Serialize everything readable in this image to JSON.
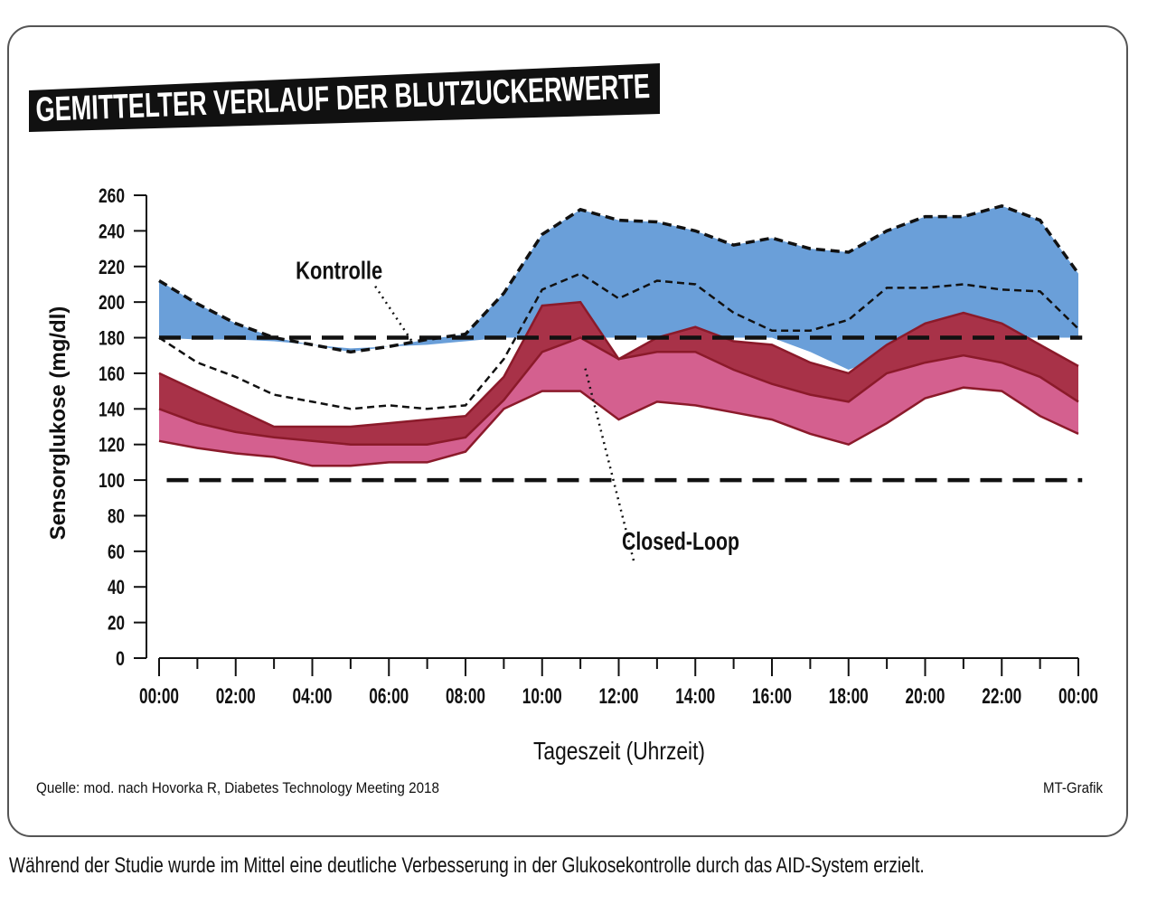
{
  "title": "GEMITTELTER VERLAUF DER BLUTZUCKERWERTE",
  "source": "Quelle: mod. nach Hovorka R, Diabetes Technology Meeting 2018",
  "credit": "MT-Grafik",
  "caption": "Während der Studie wurde im Mittel eine deutliche Verbesserung in der Glukosekontrolle durch das AID-System erzielt.",
  "colors": {
    "kontrolle_fill": "#6a9fd9",
    "closed_loop_outer": "#d4608f",
    "closed_loop_inner": "#a83248",
    "line": "#8b1a2a",
    "dashed": "#111111"
  },
  "chart_data": {
    "type": "area",
    "title": "GEMITTELTER VERLAUF DER BLUTZUCKERWERTE",
    "xlabel": "Tageszeit (Uhrzeit)",
    "ylabel": "Sensorglukose (mg/dl)",
    "ylim": [
      0,
      260
    ],
    "xlim": [
      0,
      24
    ],
    "y_ticks": [
      "0",
      "20",
      "40",
      "60",
      "80",
      "100",
      "120",
      "140",
      "160",
      "180",
      "200",
      "220",
      "240",
      "260"
    ],
    "x_ticks": [
      "00:00",
      "02:00",
      "04:00",
      "06:00",
      "08:00",
      "10:00",
      "12:00",
      "14:00",
      "16:00",
      "18:00",
      "20:00",
      "22:00",
      "00:00"
    ],
    "x_ticks_hours": [
      0,
      2,
      4,
      6,
      8,
      10,
      12,
      14,
      16,
      18,
      20,
      22,
      24
    ],
    "reference_lines": [
      180,
      100
    ],
    "hours": [
      0,
      1,
      2,
      3,
      4,
      5,
      6,
      7,
      8,
      9,
      10,
      11,
      12,
      13,
      14,
      15,
      16,
      17,
      18,
      19,
      20,
      21,
      22,
      23,
      24
    ],
    "series": [
      {
        "name": "Kontrolle",
        "role": "upper_quartile",
        "values": [
          212,
          199,
          188,
          180,
          176,
          172,
          175,
          179,
          182,
          205,
          238,
          252,
          246,
          245,
          240,
          232,
          236,
          230,
          228,
          240,
          248,
          248,
          254,
          246,
          216
        ]
      },
      {
        "name": "Kontrolle",
        "role": "median",
        "values": [
          180,
          166,
          158,
          148,
          144,
          140,
          142,
          140,
          142,
          168,
          207,
          216,
          202,
          212,
          210,
          194,
          184,
          184,
          190,
          208,
          208,
          210,
          207,
          206,
          185
        ]
      },
      {
        "name": "Kontrolle",
        "role": "lower_quartile",
        "values": [
          180,
          179,
          179,
          178,
          176,
          174,
          175,
          176,
          178,
          180,
          180,
          180,
          180,
          180,
          180,
          180,
          180,
          172,
          162,
          170,
          180,
          180,
          180,
          180,
          180
        ]
      },
      {
        "name": "Closed-Loop",
        "role": "upper_quartile",
        "values": [
          160,
          150,
          140,
          130,
          130,
          130,
          132,
          134,
          136,
          158,
          198,
          200,
          168,
          180,
          186,
          178,
          176,
          166,
          160,
          176,
          188,
          194,
          188,
          176,
          164
        ]
      },
      {
        "name": "Closed-Loop",
        "role": "median",
        "values": [
          140,
          132,
          127,
          124,
          122,
          120,
          120,
          120,
          124,
          145,
          172,
          180,
          168,
          172,
          172,
          162,
          154,
          148,
          144,
          160,
          166,
          170,
          166,
          158,
          144
        ]
      },
      {
        "name": "Closed-Loop",
        "role": "lower_quartile",
        "values": [
          122,
          118,
          115,
          113,
          108,
          108,
          110,
          110,
          116,
          140,
          150,
          150,
          134,
          144,
          142,
          138,
          134,
          126,
          120,
          132,
          146,
          152,
          150,
          136,
          126
        ]
      }
    ],
    "annotations": [
      {
        "text": "Kontrolle",
        "x_hour": 4.7,
        "y": 218
      },
      {
        "text": "Closed-Loop",
        "x_hour": 12.2,
        "y": 66
      }
    ]
  }
}
